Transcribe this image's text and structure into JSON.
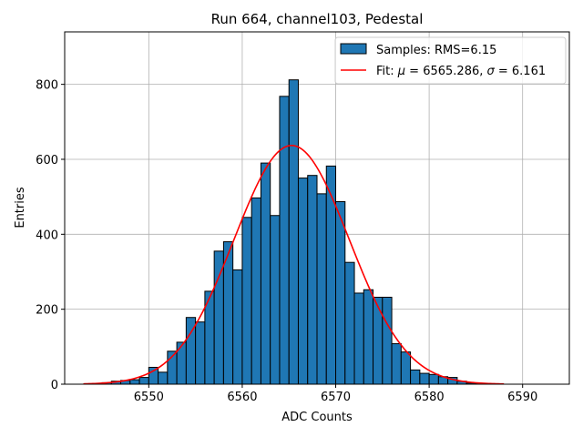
{
  "chart_data": {
    "type": "bar",
    "title": "Run 664, channel103, Pedestal",
    "xlabel": "ADC Counts",
    "ylabel": "Entries",
    "xlim": [
      6541,
      6595
    ],
    "ylim": [
      0,
      940
    ],
    "xticks": [
      6550,
      6560,
      6570,
      6580,
      6590
    ],
    "yticks": [
      0,
      200,
      400,
      600,
      800
    ],
    "grid": true,
    "legend_position": "top-right",
    "colors": {
      "bars": "#1f77b4",
      "fit": "#ff0000"
    },
    "series": [
      {
        "name": "Samples: RMS=6.15",
        "type": "histogram",
        "bin_width": 1,
        "bin_starts": [
          6544,
          6545,
          6546,
          6547,
          6548,
          6549,
          6550,
          6551,
          6552,
          6553,
          6554,
          6555,
          6556,
          6557,
          6558,
          6559,
          6560,
          6561,
          6562,
          6563,
          6564,
          6565,
          6566,
          6567,
          6568,
          6569,
          6570,
          6571,
          6572,
          6573,
          6574,
          6575,
          6576,
          6577,
          6578,
          6579,
          6580,
          6581,
          6582,
          6583,
          6584,
          6585
        ],
        "values": [
          2,
          4,
          8,
          10,
          12,
          18,
          45,
          32,
          88,
          112,
          178,
          166,
          248,
          355,
          380,
          305,
          445,
          497,
          590,
          450,
          768,
          812,
          550,
          557,
          508,
          582,
          487,
          325,
          243,
          252,
          232,
          232,
          108,
          86,
          38,
          29,
          26,
          20,
          18,
          8,
          3,
          1
        ]
      },
      {
        "name": "Fit: μ = 6565.286, σ = 6.161",
        "type": "line",
        "mu": 6565.286,
        "sigma": 6.161,
        "peak": 637,
        "x_range": [
          6543,
          6588
        ]
      }
    ]
  }
}
